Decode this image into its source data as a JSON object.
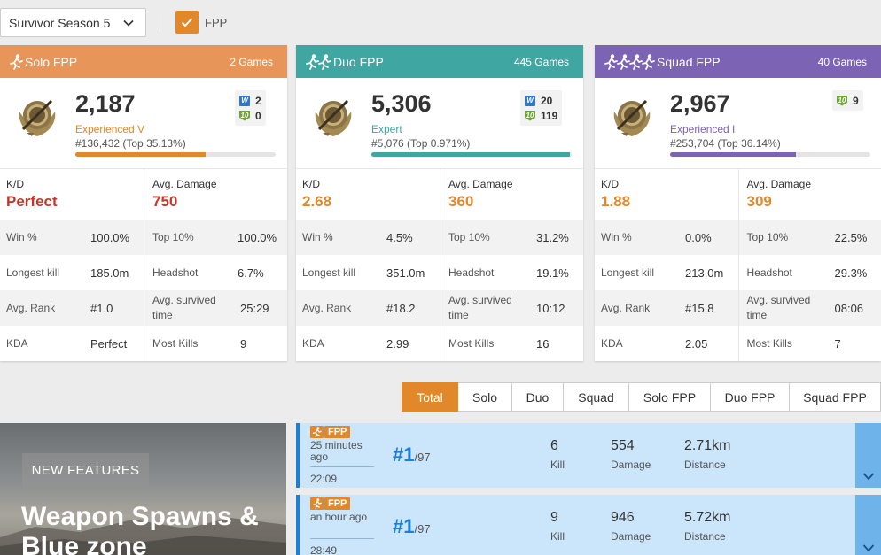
{
  "filters": {
    "season": "Survivor Season 5",
    "fpp_label": "FPP",
    "fpp_checked": true
  },
  "colors": {
    "solo": "#e8955a",
    "duo": "#3fa6a2",
    "squad": "#7d63b3",
    "accent": "#e0882a",
    "match_bg": "#cbe6fb",
    "match_border": "#1e7fd6"
  },
  "cards": [
    {
      "mode": "Solo FPP",
      "games": "2 Games",
      "rating": "2,187",
      "tier": "Experienced V",
      "rank": "#136,432 (Top 35.13%)",
      "progress": 0.65,
      "wins": "2",
      "top10": "0",
      "kd_label": "K/D",
      "kd": "Perfect",
      "avg_damage_label": "Avg. Damage",
      "avg_damage": "750",
      "stats": [
        [
          "Win %",
          "100.0%",
          "Top 10%",
          "100.0%"
        ],
        [
          "Longest kill",
          "185.0m",
          "Headshot",
          "6.7%"
        ],
        [
          "Avg. Rank",
          "#1.0",
          "Avg. survived time",
          "25:29"
        ],
        [
          "KDA",
          "Perfect",
          "Most Kills",
          "9"
        ]
      ]
    },
    {
      "mode": "Duo FPP",
      "games": "445 Games",
      "rating": "5,306",
      "tier": "Expert",
      "rank": "#5,076 (Top 0.971%)",
      "progress": 0.99,
      "wins": "20",
      "top10": "119",
      "kd_label": "K/D",
      "kd": "2.68",
      "avg_damage_label": "Avg. Damage",
      "avg_damage": "360",
      "stats": [
        [
          "Win %",
          "4.5%",
          "Top 10%",
          "31.2%"
        ],
        [
          "Longest kill",
          "351.0m",
          "Headshot",
          "19.1%"
        ],
        [
          "Avg. Rank",
          "#18.2",
          "Avg. survived time",
          "10:12"
        ],
        [
          "KDA",
          "2.99",
          "Most Kills",
          "16"
        ]
      ]
    },
    {
      "mode": "Squad FPP",
      "games": "40 Games",
      "rating": "2,967",
      "tier": "Experienced I",
      "rank": "#253,704 (Top 36.14%)",
      "progress": 0.63,
      "wins": null,
      "top10": "9",
      "kd_label": "K/D",
      "kd": "1.88",
      "avg_damage_label": "Avg. Damage",
      "avg_damage": "309",
      "stats": [
        [
          "Win %",
          "0.0%",
          "Top 10%",
          "22.5%"
        ],
        [
          "Longest kill",
          "213.0m",
          "Headshot",
          "29.3%"
        ],
        [
          "Avg. Rank",
          "#15.8",
          "Avg. survived time",
          "08:06"
        ],
        [
          "KDA",
          "2.05",
          "Most Kills",
          "7"
        ]
      ]
    }
  ],
  "tabs": [
    "Total",
    "Solo",
    "Duo",
    "Squad",
    "Solo FPP",
    "Duo FPP",
    "Squad FPP"
  ],
  "active_tab": "Total",
  "banner": {
    "badge": "NEW FEATURES",
    "title": "Weapon Spawns & Blue zone"
  },
  "matches": [
    {
      "tag": "FPP",
      "ago": "25 minutes ago",
      "duration": "22:09",
      "place": "#1",
      "total": "/97",
      "kills": "6",
      "kills_label": "Kill",
      "damage": "554",
      "damage_label": "Damage",
      "distance": "2.71km",
      "distance_label": "Distance"
    },
    {
      "tag": "FPP",
      "ago": "an hour ago",
      "duration": "28:49",
      "place": "#1",
      "total": "/97",
      "kills": "9",
      "kills_label": "Kill",
      "damage": "946",
      "damage_label": "Damage",
      "distance": "5.72km",
      "distance_label": "Distance"
    }
  ]
}
